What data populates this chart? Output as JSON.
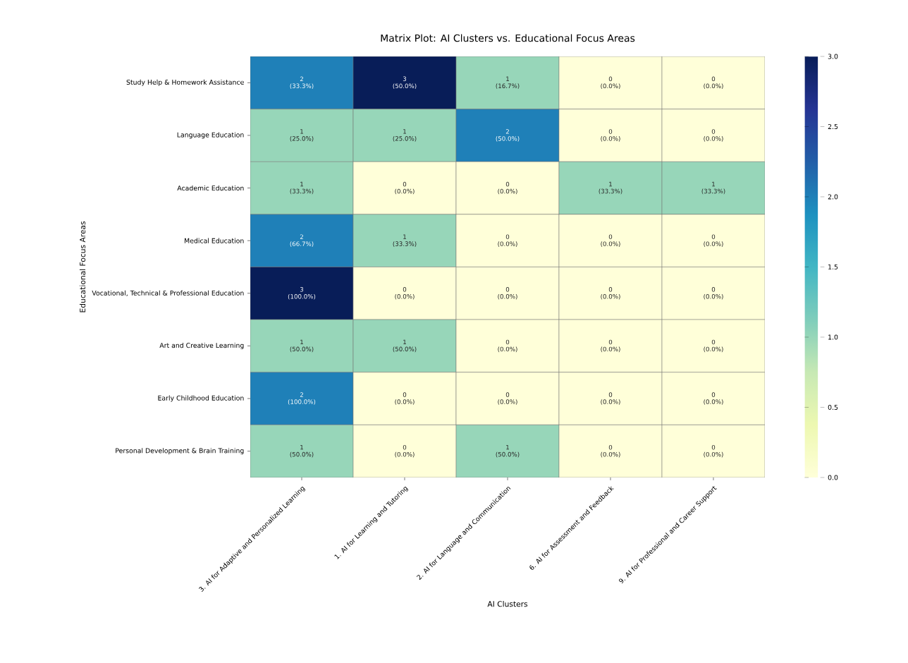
{
  "chart_data": {
    "type": "heatmap",
    "title": "Matrix Plot: AI Clusters vs. Educational Focus Areas",
    "xlabel": "AI Clusters",
    "ylabel": "Educational Focus Areas",
    "categories": [
      "3. AI for Adaptive and Personalized Learning",
      "1. AI for Learning and Tutoring",
      "2. AI for Language and Communication",
      "6. AI for Assessment and Feedback",
      "9. AI for Professional and Career Support"
    ],
    "y_categories": [
      "Study Help & Homework Assistance",
      "Language Education",
      "Academic Education",
      "Medical Education",
      "Vocational, Technical & Professional Education",
      "Art and Creative Learning",
      "Early Childhood Education",
      "Personal Development & Brain Training"
    ],
    "cells": [
      [
        2,
        3,
        1,
        0,
        0
      ],
      [
        1,
        1,
        2,
        0,
        0
      ],
      [
        1,
        0,
        0,
        1,
        1
      ],
      [
        2,
        1,
        0,
        0,
        0
      ],
      [
        3,
        0,
        0,
        0,
        0
      ],
      [
        1,
        1,
        0,
        0,
        0
      ],
      [
        2,
        0,
        0,
        0,
        0
      ],
      [
        1,
        0,
        1,
        0,
        0
      ]
    ],
    "cell_labels": [
      [
        "2 (33.3%)",
        "3 (50.0%)",
        "1 (16.7%)",
        "0 (0.0%)",
        "0 (0.0%)"
      ],
      [
        "1 (25.0%)",
        "1 (25.0%)",
        "2 (50.0%)",
        "0 (0.0%)",
        "0 (0.0%)"
      ],
      [
        "1 (33.3%)",
        "0 (0.0%)",
        "0 (0.0%)",
        "1 (33.3%)",
        "1 (33.3%)"
      ],
      [
        "2 (66.7%)",
        "1 (33.3%)",
        "0 (0.0%)",
        "0 (0.0%)",
        "0 (0.0%)"
      ],
      [
        "3 (100.0%)",
        "0 (0.0%)",
        "0 (0.0%)",
        "0 (0.0%)",
        "0 (0.0%)"
      ],
      [
        "1 (50.0%)",
        "1 (50.0%)",
        "0 (0.0%)",
        "0 (0.0%)",
        "0 (0.0%)"
      ],
      [
        "2 (100.0%)",
        "0 (0.0%)",
        "0 (0.0%)",
        "0 (0.0%)",
        "0 (0.0%)"
      ],
      [
        "1 (50.0%)",
        "0 (0.0%)",
        "1 (50.0%)",
        "0 (0.0%)",
        "0 (0.0%)"
      ]
    ],
    "clim": [
      0,
      3
    ],
    "cticks": [
      {
        "value": 0,
        "label": "0.0"
      },
      {
        "value": 0.5,
        "label": "0.5"
      },
      {
        "value": 1,
        "label": "1.0"
      },
      {
        "value": 1.5,
        "label": "1.5"
      },
      {
        "value": 2,
        "label": "2.0"
      },
      {
        "value": 2.5,
        "label": "2.5"
      },
      {
        "value": 3,
        "label": "3.0"
      }
    ]
  }
}
